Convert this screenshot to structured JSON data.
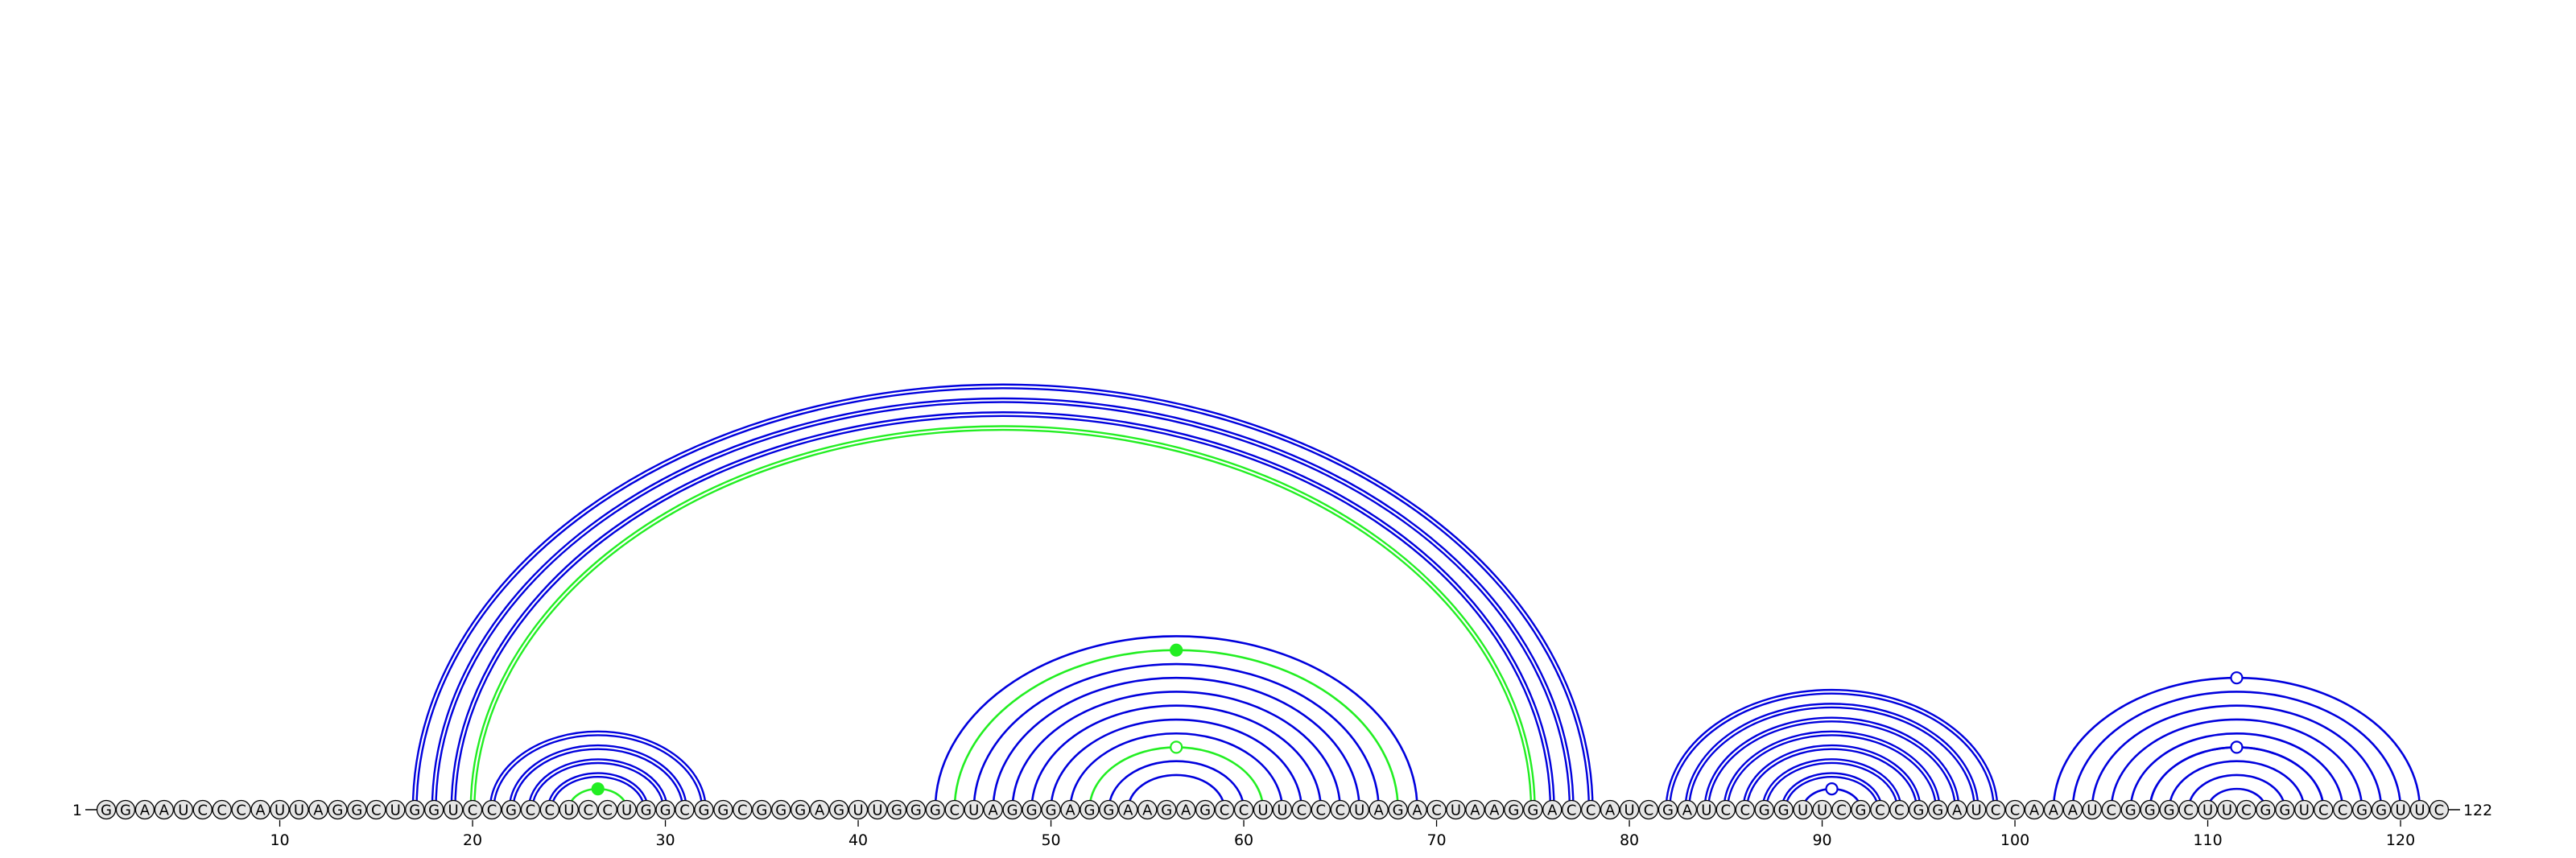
{
  "sequence": "GGAAUCCCAUUAGGCUGGUCCGCCUCCUGGCGGCGGGAGUUGGGCUAGGGAGGAAGAGCCUUCCCUAGACUAAGGACCAUCGAUCCGGUUCGCCGGAUCCAAAUCGGGCUUCGGUCCGGUUC",
  "start_label": "1",
  "end_label": "122",
  "ticks": [
    "10",
    "20",
    "30",
    "40",
    "50",
    "60",
    "70",
    "80",
    "90",
    "100",
    "110",
    "120"
  ],
  "colors": {
    "pair_primary": "#0000dd",
    "pair_alternate": "#22ee22",
    "base_fill": "#e6e6e6",
    "text": "#000000"
  },
  "arc_groups": [
    {
      "color": "blue",
      "double": true,
      "pairs": [
        [
          17,
          78
        ],
        [
          18,
          77
        ],
        [
          19,
          76
        ]
      ]
    },
    {
      "color": "green",
      "double": true,
      "pairs": [
        [
          20,
          75
        ]
      ]
    },
    {
      "color": "blue",
      "double": true,
      "pairs": [
        [
          21,
          32
        ],
        [
          22,
          31
        ],
        [
          23,
          30
        ],
        [
          24,
          29
        ]
      ]
    },
    {
      "color": "green",
      "double": false,
      "pairs": [
        [
          25,
          28
        ]
      ],
      "marker": "filled"
    },
    {
      "color": "blue",
      "double": false,
      "pairs": [
        [
          44,
          69
        ],
        [
          46,
          67
        ],
        [
          47,
          66
        ],
        [
          48,
          65
        ],
        [
          49,
          64
        ],
        [
          50,
          63
        ],
        [
          51,
          62
        ],
        [
          53,
          60
        ],
        [
          54,
          59
        ]
      ]
    },
    {
      "color": "green",
      "double": false,
      "pairs": [
        [
          45,
          68
        ]
      ],
      "marker": "filled"
    },
    {
      "color": "green",
      "double": false,
      "pairs": [
        [
          52,
          61
        ]
      ],
      "marker": "open"
    },
    {
      "color": "blue",
      "double": true,
      "pairs": [
        [
          82,
          99
        ],
        [
          83,
          98
        ],
        [
          84,
          97
        ],
        [
          85,
          96
        ],
        [
          86,
          95
        ],
        [
          87,
          94
        ],
        [
          88,
          93
        ]
      ]
    },
    {
      "color": "blue",
      "double": false,
      "pairs": [
        [
          89,
          92
        ]
      ],
      "marker": "open"
    },
    {
      "color": "blue",
      "double": false,
      "pairs": [
        [
          103,
          120
        ],
        [
          104,
          119
        ],
        [
          105,
          118
        ],
        [
          106,
          117
        ],
        [
          107,
          116
        ],
        [
          108,
          115
        ],
        [
          109,
          114
        ],
        [
          110,
          113
        ]
      ]
    },
    {
      "color": "blue",
      "double": false,
      "pairs": [
        [
          102,
          121
        ]
      ],
      "marker": "open"
    },
    {
      "color": "blue",
      "double": false,
      "pairs": [
        [
          107,
          116
        ]
      ],
      "marker": "open"
    }
  ]
}
